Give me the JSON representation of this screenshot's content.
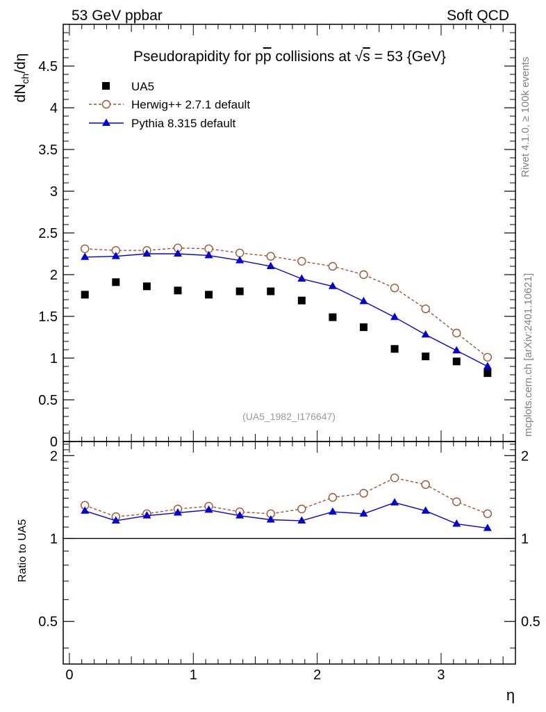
{
  "header": {
    "left": "53 GeV ppbar",
    "right": "Soft QCD"
  },
  "side_labels": {
    "rivet": "Rivet 4.1.0, ≥ 100k events",
    "mcplots": "mcplots.cern.ch [arXiv:2401.10621]"
  },
  "chart_data": [
    {
      "type": "scatter",
      "title": "Pseudorapidity for p̅p collisions at √s = 53 {GeV}",
      "title_parts": {
        "prefix": "Pseudorapidity for p",
        "pbar": "p",
        "middle": " collisions at ",
        "sqrt": "√",
        "s": "s",
        "suffix": " = 53 {GeV}"
      },
      "ylabel": {
        "main": "dN",
        "sub": "ch",
        "rest": "/dη"
      },
      "xlim": [
        -0.05,
        3.6
      ],
      "ylim": [
        0,
        5.0
      ],
      "yticks": [
        0,
        0.5,
        1,
        1.5,
        2,
        2.5,
        3,
        3.5,
        4,
        4.5
      ],
      "ytick_labels": [
        "0",
        "0.5",
        "1",
        "1.5",
        "2",
        "2.5",
        "3",
        "3.5",
        "4",
        "4.5"
      ],
      "watermark": "(UA5_1982_I176647)",
      "x": [
        0.125,
        0.375,
        0.625,
        0.875,
        1.125,
        1.375,
        1.625,
        1.875,
        2.125,
        2.375,
        2.625,
        2.875,
        3.125,
        3.375
      ],
      "series": [
        {
          "name": "UA5",
          "style": "square",
          "color": "#000000",
          "values": [
            1.76,
            1.91,
            1.86,
            1.81,
            1.76,
            1.8,
            1.8,
            1.69,
            1.49,
            1.37,
            1.11,
            1.02,
            0.96,
            0.82
          ]
        },
        {
          "name": "Herwig++ 2.7.1 default",
          "style": "open-circle-dashed",
          "color": "#a0522d",
          "values": [
            2.31,
            2.29,
            2.29,
            2.32,
            2.31,
            2.26,
            2.22,
            2.16,
            2.1,
            2.0,
            1.84,
            1.59,
            1.3,
            1.01
          ]
        },
        {
          "name": "Pythia 8.315 default",
          "style": "triangle-solid",
          "color": "#0000dd",
          "values": [
            2.21,
            2.22,
            2.25,
            2.25,
            2.23,
            2.17,
            2.1,
            1.95,
            1.86,
            1.68,
            1.49,
            1.28,
            1.09,
            0.9
          ]
        }
      ],
      "legend": [
        "UA5",
        "Herwig++ 2.7.1 default",
        "Pythia 8.315 default"
      ]
    },
    {
      "type": "line",
      "title": "",
      "ylabel": "Ratio to UA5",
      "xlabel": "η",
      "xlim": [
        -0.05,
        3.6
      ],
      "ylim": [
        0.35,
        2.25
      ],
      "yticks": [
        0.5,
        1,
        2
      ],
      "ytick_labels": [
        "0.5",
        "1",
        "2"
      ],
      "xticks": [
        0,
        1,
        2,
        3
      ],
      "xtick_labels": [
        "0",
        "1",
        "2",
        "3"
      ],
      "reference": 1,
      "x": [
        0.125,
        0.375,
        0.625,
        0.875,
        1.125,
        1.375,
        1.625,
        1.875,
        2.125,
        2.375,
        2.625,
        2.875,
        3.125,
        3.375
      ],
      "series": [
        {
          "name": "Herwig++ 2.7.1 default",
          "style": "open-circle-dashed",
          "color": "#a0522d",
          "values": [
            1.32,
            1.2,
            1.23,
            1.28,
            1.31,
            1.25,
            1.23,
            1.28,
            1.41,
            1.46,
            1.66,
            1.57,
            1.36,
            1.23
          ]
        },
        {
          "name": "Pythia 8.315 default",
          "style": "triangle-solid",
          "color": "#0000dd",
          "values": [
            1.26,
            1.16,
            1.21,
            1.24,
            1.27,
            1.21,
            1.17,
            1.16,
            1.25,
            1.23,
            1.35,
            1.26,
            1.13,
            1.09
          ]
        }
      ]
    }
  ]
}
